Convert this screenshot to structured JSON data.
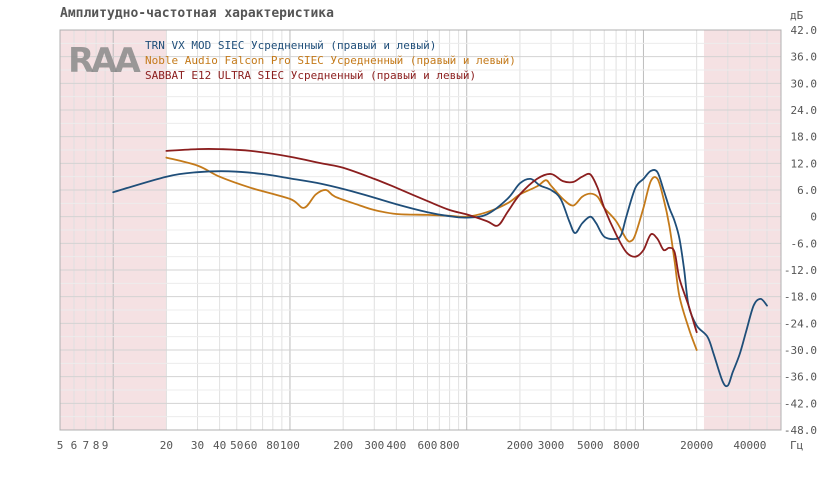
{
  "chart_data": {
    "type": "line",
    "title": "Амплитудно-частотная характеристика",
    "xunit": "Гц",
    "yunit": "дБ",
    "xscale": "log",
    "xlim": [
      5,
      60000
    ],
    "ylim": [
      -48,
      42
    ],
    "grid": true,
    "legend_position": "top-left",
    "logo_text": "RAA",
    "xticks": [
      5,
      6,
      7,
      8,
      9,
      20,
      30,
      40,
      50,
      60,
      80,
      100,
      200,
      300,
      400,
      600,
      800,
      2000,
      3000,
      5000,
      8000,
      20000,
      40000
    ],
    "xtick_labels": [
      "5",
      "6",
      "7",
      "8",
      "9",
      "20",
      "30",
      "40",
      "50",
      "60",
      "80",
      "100",
      "200",
      "300",
      "400",
      "600",
      "800",
      "2000",
      "3000",
      "5000",
      "8000",
      "20000",
      "40000"
    ],
    "yticks": [
      42,
      36,
      30,
      24,
      18,
      12,
      6,
      0,
      -6,
      -12,
      -18,
      -24,
      -30,
      -36,
      -42,
      -48
    ],
    "ytick_labels": [
      "42.0",
      "36.0",
      "30.0",
      "24.0",
      "18.0",
      "12.0",
      "6.0",
      "0",
      "-6.0",
      "-12.0",
      "-18.0",
      "-24.0",
      "-30.0",
      "-36.0",
      "-42.0",
      "-48.0"
    ],
    "shaded_ranges": [
      [
        5,
        20
      ],
      [
        22000,
        60000
      ]
    ],
    "shade_color": "#f5e1e3",
    "series": [
      {
        "name": "TRN VX MOD SIEC Усредненный (правый и левый)",
        "color": "#1f4e79",
        "points": [
          [
            10,
            5.5
          ],
          [
            20,
            9.0
          ],
          [
            30,
            10.0
          ],
          [
            45,
            10.2
          ],
          [
            70,
            9.6
          ],
          [
            100,
            8.6
          ],
          [
            150,
            7.4
          ],
          [
            250,
            5.2
          ],
          [
            400,
            2.8
          ],
          [
            600,
            1.0
          ],
          [
            800,
            0.1
          ],
          [
            1000,
            -0.2
          ],
          [
            1300,
            0.5
          ],
          [
            1700,
            4.0
          ],
          [
            2000,
            7.5
          ],
          [
            2300,
            8.5
          ],
          [
            2600,
            7.0
          ],
          [
            3000,
            6.0
          ],
          [
            3400,
            4.0
          ],
          [
            3800,
            -1.0
          ],
          [
            4100,
            -3.7
          ],
          [
            4500,
            -1.5
          ],
          [
            5000,
            0.0
          ],
          [
            5400,
            -1.5
          ],
          [
            6000,
            -4.5
          ],
          [
            7000,
            -5.0
          ],
          [
            7500,
            -4.0
          ],
          [
            8000,
            0.0
          ],
          [
            9000,
            6.5
          ],
          [
            10000,
            8.5
          ],
          [
            11000,
            10.3
          ],
          [
            12000,
            10.0
          ],
          [
            13000,
            6.0
          ],
          [
            14000,
            2.0
          ],
          [
            15000,
            -1.0
          ],
          [
            16000,
            -5.0
          ],
          [
            17000,
            -12.0
          ],
          [
            18000,
            -20.0
          ],
          [
            20000,
            -24.5
          ],
          [
            23000,
            -27.0
          ],
          [
            25000,
            -31.0
          ],
          [
            28000,
            -37.0
          ],
          [
            30000,
            -38.0
          ],
          [
            32000,
            -35.0
          ],
          [
            35000,
            -31.0
          ],
          [
            38000,
            -26.0
          ],
          [
            42000,
            -20.0
          ],
          [
            46000,
            -18.5
          ],
          [
            50000,
            -20.0
          ]
        ]
      },
      {
        "name": "Noble Audio Falcon Pro SIEC Усредненный (правый и левый)",
        "color": "#c47a1a",
        "points": [
          [
            20,
            13.3
          ],
          [
            30,
            11.5
          ],
          [
            40,
            9.0
          ],
          [
            60,
            6.5
          ],
          [
            100,
            4.0
          ],
          [
            120,
            2.0
          ],
          [
            140,
            5.0
          ],
          [
            160,
            6.0
          ],
          [
            180,
            4.5
          ],
          [
            250,
            2.5
          ],
          [
            300,
            1.5
          ],
          [
            400,
            0.6
          ],
          [
            600,
            0.4
          ],
          [
            800,
            0.2
          ],
          [
            1000,
            0.0
          ],
          [
            1300,
            1.0
          ],
          [
            1700,
            3.0
          ],
          [
            2000,
            5.0
          ],
          [
            2500,
            6.8
          ],
          [
            2800,
            8.2
          ],
          [
            3000,
            7.0
          ],
          [
            3500,
            4.0
          ],
          [
            4000,
            2.5
          ],
          [
            4500,
            4.5
          ],
          [
            5000,
            5.2
          ],
          [
            5500,
            4.5
          ],
          [
            6000,
            2.0
          ],
          [
            7000,
            -1.0
          ],
          [
            8000,
            -5.0
          ],
          [
            8500,
            -5.5
          ],
          [
            9000,
            -4.0
          ],
          [
            10000,
            2.0
          ],
          [
            11000,
            8.0
          ],
          [
            12000,
            8.5
          ],
          [
            13000,
            4.0
          ],
          [
            14000,
            -2.0
          ],
          [
            15000,
            -10.0
          ],
          [
            16000,
            -18.0
          ],
          [
            18000,
            -25.0
          ],
          [
            20000,
            -30.0
          ]
        ]
      },
      {
        "name": "SABBAT E12 ULTRA SIEC Усредненный (правый и левый)",
        "color": "#8b1e1e",
        "points": [
          [
            20,
            14.8
          ],
          [
            30,
            15.2
          ],
          [
            40,
            15.2
          ],
          [
            60,
            14.8
          ],
          [
            100,
            13.5
          ],
          [
            150,
            12.0
          ],
          [
            200,
            11.0
          ],
          [
            300,
            8.5
          ],
          [
            400,
            6.5
          ],
          [
            600,
            3.5
          ],
          [
            800,
            1.5
          ],
          [
            1000,
            0.5
          ],
          [
            1300,
            -1.0
          ],
          [
            1500,
            -2.0
          ],
          [
            1700,
            1.0
          ],
          [
            2000,
            5.0
          ],
          [
            2500,
            8.5
          ],
          [
            3000,
            9.6
          ],
          [
            3500,
            8.0
          ],
          [
            4000,
            7.8
          ],
          [
            4500,
            9.0
          ],
          [
            5000,
            9.5
          ],
          [
            5500,
            6.5
          ],
          [
            6000,
            2.0
          ],
          [
            7000,
            -4.0
          ],
          [
            8000,
            -8.0
          ],
          [
            9000,
            -9.0
          ],
          [
            10000,
            -7.5
          ],
          [
            11000,
            -4.0
          ],
          [
            12000,
            -5.0
          ],
          [
            13000,
            -7.5
          ],
          [
            14000,
            -7.0
          ],
          [
            15000,
            -8.0
          ],
          [
            16000,
            -14.0
          ],
          [
            18000,
            -20.0
          ],
          [
            20000,
            -26.0
          ]
        ]
      }
    ]
  }
}
